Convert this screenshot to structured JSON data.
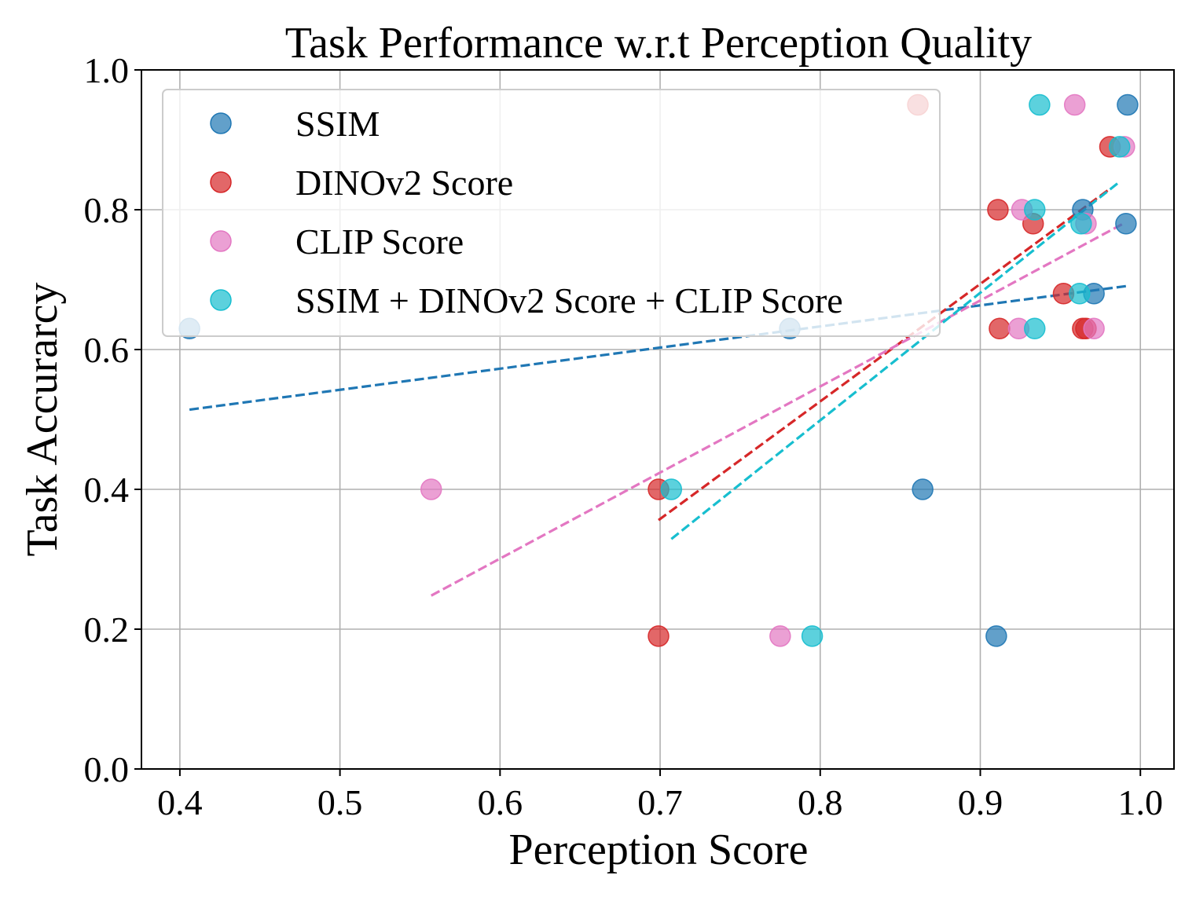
{
  "chart_data": {
    "type": "scatter",
    "title": "Task Performance w.r.t Perception Quality",
    "xlabel": "Perception Score",
    "ylabel": "Task Accurarcy",
    "xlim": [
      0.376,
      1.021
    ],
    "ylim": [
      0.0,
      1.0
    ],
    "x_ticks": [
      0.4,
      0.5,
      0.6,
      0.7,
      0.8,
      0.9,
      1.0
    ],
    "x_tick_labels": [
      "0.4",
      "0.5",
      "0.6",
      "0.7",
      "0.8",
      "0.9",
      "1.0"
    ],
    "y_ticks": [
      0.0,
      0.2,
      0.4,
      0.6,
      0.8,
      1.0
    ],
    "y_tick_labels": [
      "0.0",
      "0.2",
      "0.4",
      "0.6",
      "0.8",
      "1.0"
    ],
    "grid": true,
    "legend_position": "upper-left",
    "series": [
      {
        "name": "SSIM",
        "color": "#1f77b4",
        "points": [
          [
            0.406,
            0.63
          ],
          [
            0.781,
            0.63
          ],
          [
            0.864,
            0.4
          ],
          [
            0.91,
            0.19
          ],
          [
            0.964,
            0.8
          ],
          [
            0.971,
            0.68
          ],
          [
            0.992,
            0.95
          ],
          [
            0.991,
            0.78
          ]
        ],
        "trend": {
          "x": [
            0.406,
            0.992
          ],
          "y": [
            0.514,
            0.691
          ]
        }
      },
      {
        "name": "DINOv2 Score",
        "color": "#d62728",
        "points": [
          [
            0.699,
            0.4
          ],
          [
            0.699,
            0.19
          ],
          [
            0.861,
            0.95
          ],
          [
            0.911,
            0.8
          ],
          [
            0.912,
            0.63
          ],
          [
            0.933,
            0.78
          ],
          [
            0.952,
            0.68
          ],
          [
            0.964,
            0.63
          ],
          [
            0.966,
            0.63
          ],
          [
            0.981,
            0.89
          ]
        ],
        "trend": {
          "x": [
            0.699,
            0.981
          ],
          "y": [
            0.356,
            0.83
          ]
        }
      },
      {
        "name": "CLIP Score",
        "color": "#e377c2",
        "points": [
          [
            0.557,
            0.4
          ],
          [
            0.775,
            0.19
          ],
          [
            0.924,
            0.63
          ],
          [
            0.926,
            0.8
          ],
          [
            0.959,
            0.95
          ],
          [
            0.966,
            0.78
          ],
          [
            0.971,
            0.63
          ],
          [
            0.99,
            0.89
          ]
        ],
        "trend": {
          "x": [
            0.557,
            0.99
          ],
          "y": [
            0.248,
            0.781
          ]
        }
      },
      {
        "name": "SSIM + DINOv2 Score + CLIP Score",
        "color": "#17becf",
        "points": [
          [
            0.707,
            0.4
          ],
          [
            0.795,
            0.19
          ],
          [
            0.934,
            0.63
          ],
          [
            0.934,
            0.8
          ],
          [
            0.937,
            0.95
          ],
          [
            0.962,
            0.68
          ],
          [
            0.963,
            0.78
          ],
          [
            0.987,
            0.89
          ]
        ],
        "trend": {
          "x": [
            0.707,
            0.987
          ],
          "y": [
            0.329,
            0.84
          ]
        }
      }
    ]
  }
}
